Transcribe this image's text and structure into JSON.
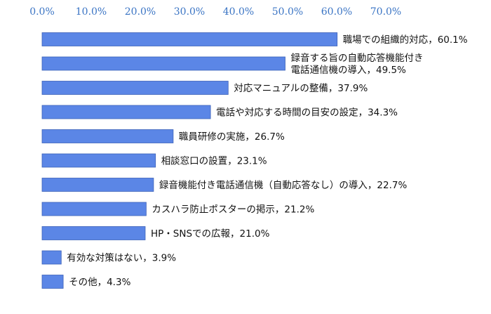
{
  "chart_data": {
    "type": "bar",
    "orientation": "horizontal",
    "title": "",
    "xlabel": "",
    "ylabel": "",
    "xlim": [
      0,
      70
    ],
    "x_ticks": [
      "0.0%",
      "10.0%",
      "20.0%",
      "30.0%",
      "40.0%",
      "50.0%",
      "60.0%",
      "70.0%"
    ],
    "grid": false,
    "legend": "none",
    "bar_color": "#5b86e6",
    "bar_edge_color": "#3d62b8",
    "categories": [
      [
        "職場での組織的対応"
      ],
      [
        "録音する旨の自動応答機能付き",
        "電話通信機の導入"
      ],
      [
        "対応マニュアルの整備"
      ],
      [
        "電話や対応する時間の目安の設定"
      ],
      [
        "職員研修の実施"
      ],
      [
        "相談窓口の設置"
      ],
      [
        "録音機能付き電話通信機（自動応答なし）の導入"
      ],
      [
        "カスハラ防止ポスターの掲示"
      ],
      [
        "HP・SNSでの広報"
      ],
      [
        "有効な対策はない"
      ],
      [
        "その他"
      ]
    ],
    "values": [
      60.1,
      49.5,
      37.9,
      34.3,
      26.7,
      23.1,
      22.7,
      21.2,
      21.0,
      3.9,
      4.3
    ],
    "value_labels": [
      "60.1%",
      "49.5%",
      "37.9%",
      "34.3%",
      "26.7%",
      "23.1%",
      "22.7%",
      "21.2%",
      "21.0%",
      "3.9%",
      "4.3%"
    ],
    "label_separator": "，"
  }
}
